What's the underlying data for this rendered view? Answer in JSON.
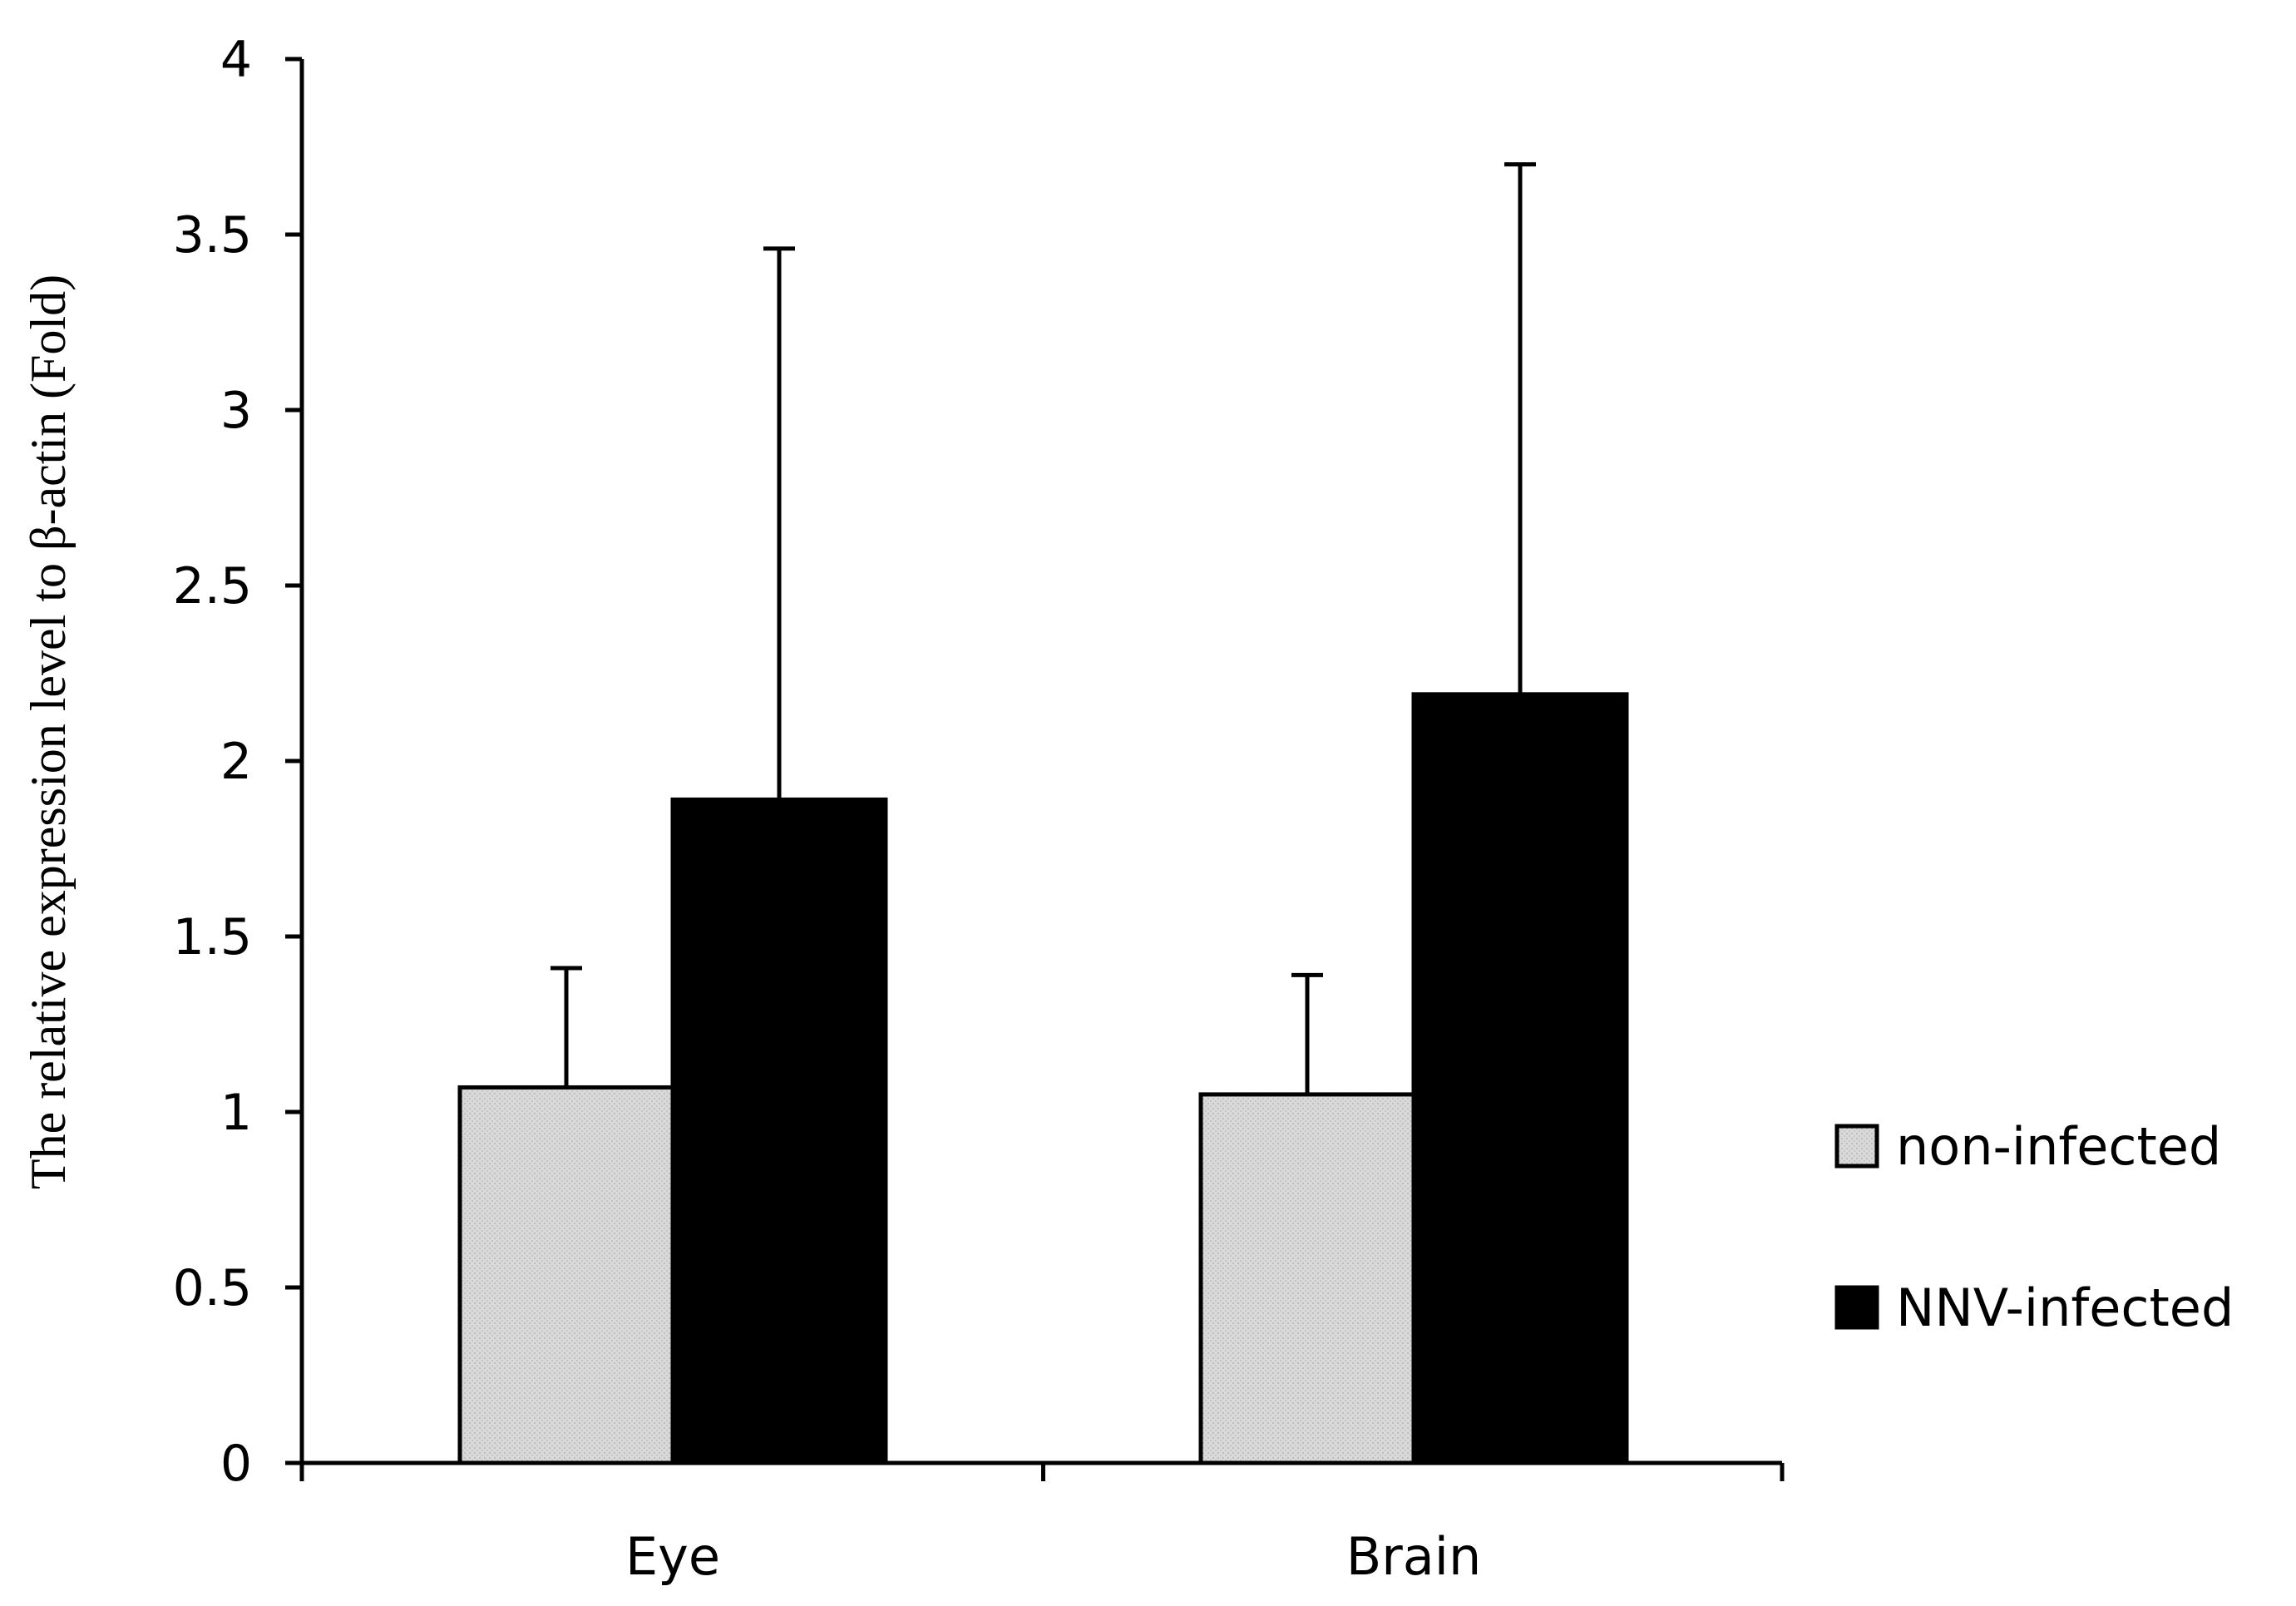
{
  "chart_data": {
    "type": "bar",
    "title": "",
    "xlabel": "",
    "ylabel": "The relative  expression level to β-actin (Fold)",
    "categories": [
      "Eye",
      "Brain"
    ],
    "ylim": [
      0,
      4
    ],
    "yticks": [
      0,
      0.5,
      1,
      1.5,
      2,
      2.5,
      3,
      3.5,
      4
    ],
    "ytick_labels": [
      "0",
      "0.5",
      "1",
      "1.5",
      "2",
      "2.5",
      "3",
      "3.5",
      "4"
    ],
    "grid": false,
    "legend_position": "right",
    "series": [
      {
        "name": "non-infected",
        "values": [
          1.07,
          1.05
        ],
        "errors": [
          0.34,
          0.34
        ],
        "color": "#d9d9d9"
      },
      {
        "name": "NNV-infected",
        "values": [
          1.89,
          2.19
        ],
        "errors": [
          1.57,
          1.51
        ],
        "color": "#000000"
      }
    ]
  }
}
